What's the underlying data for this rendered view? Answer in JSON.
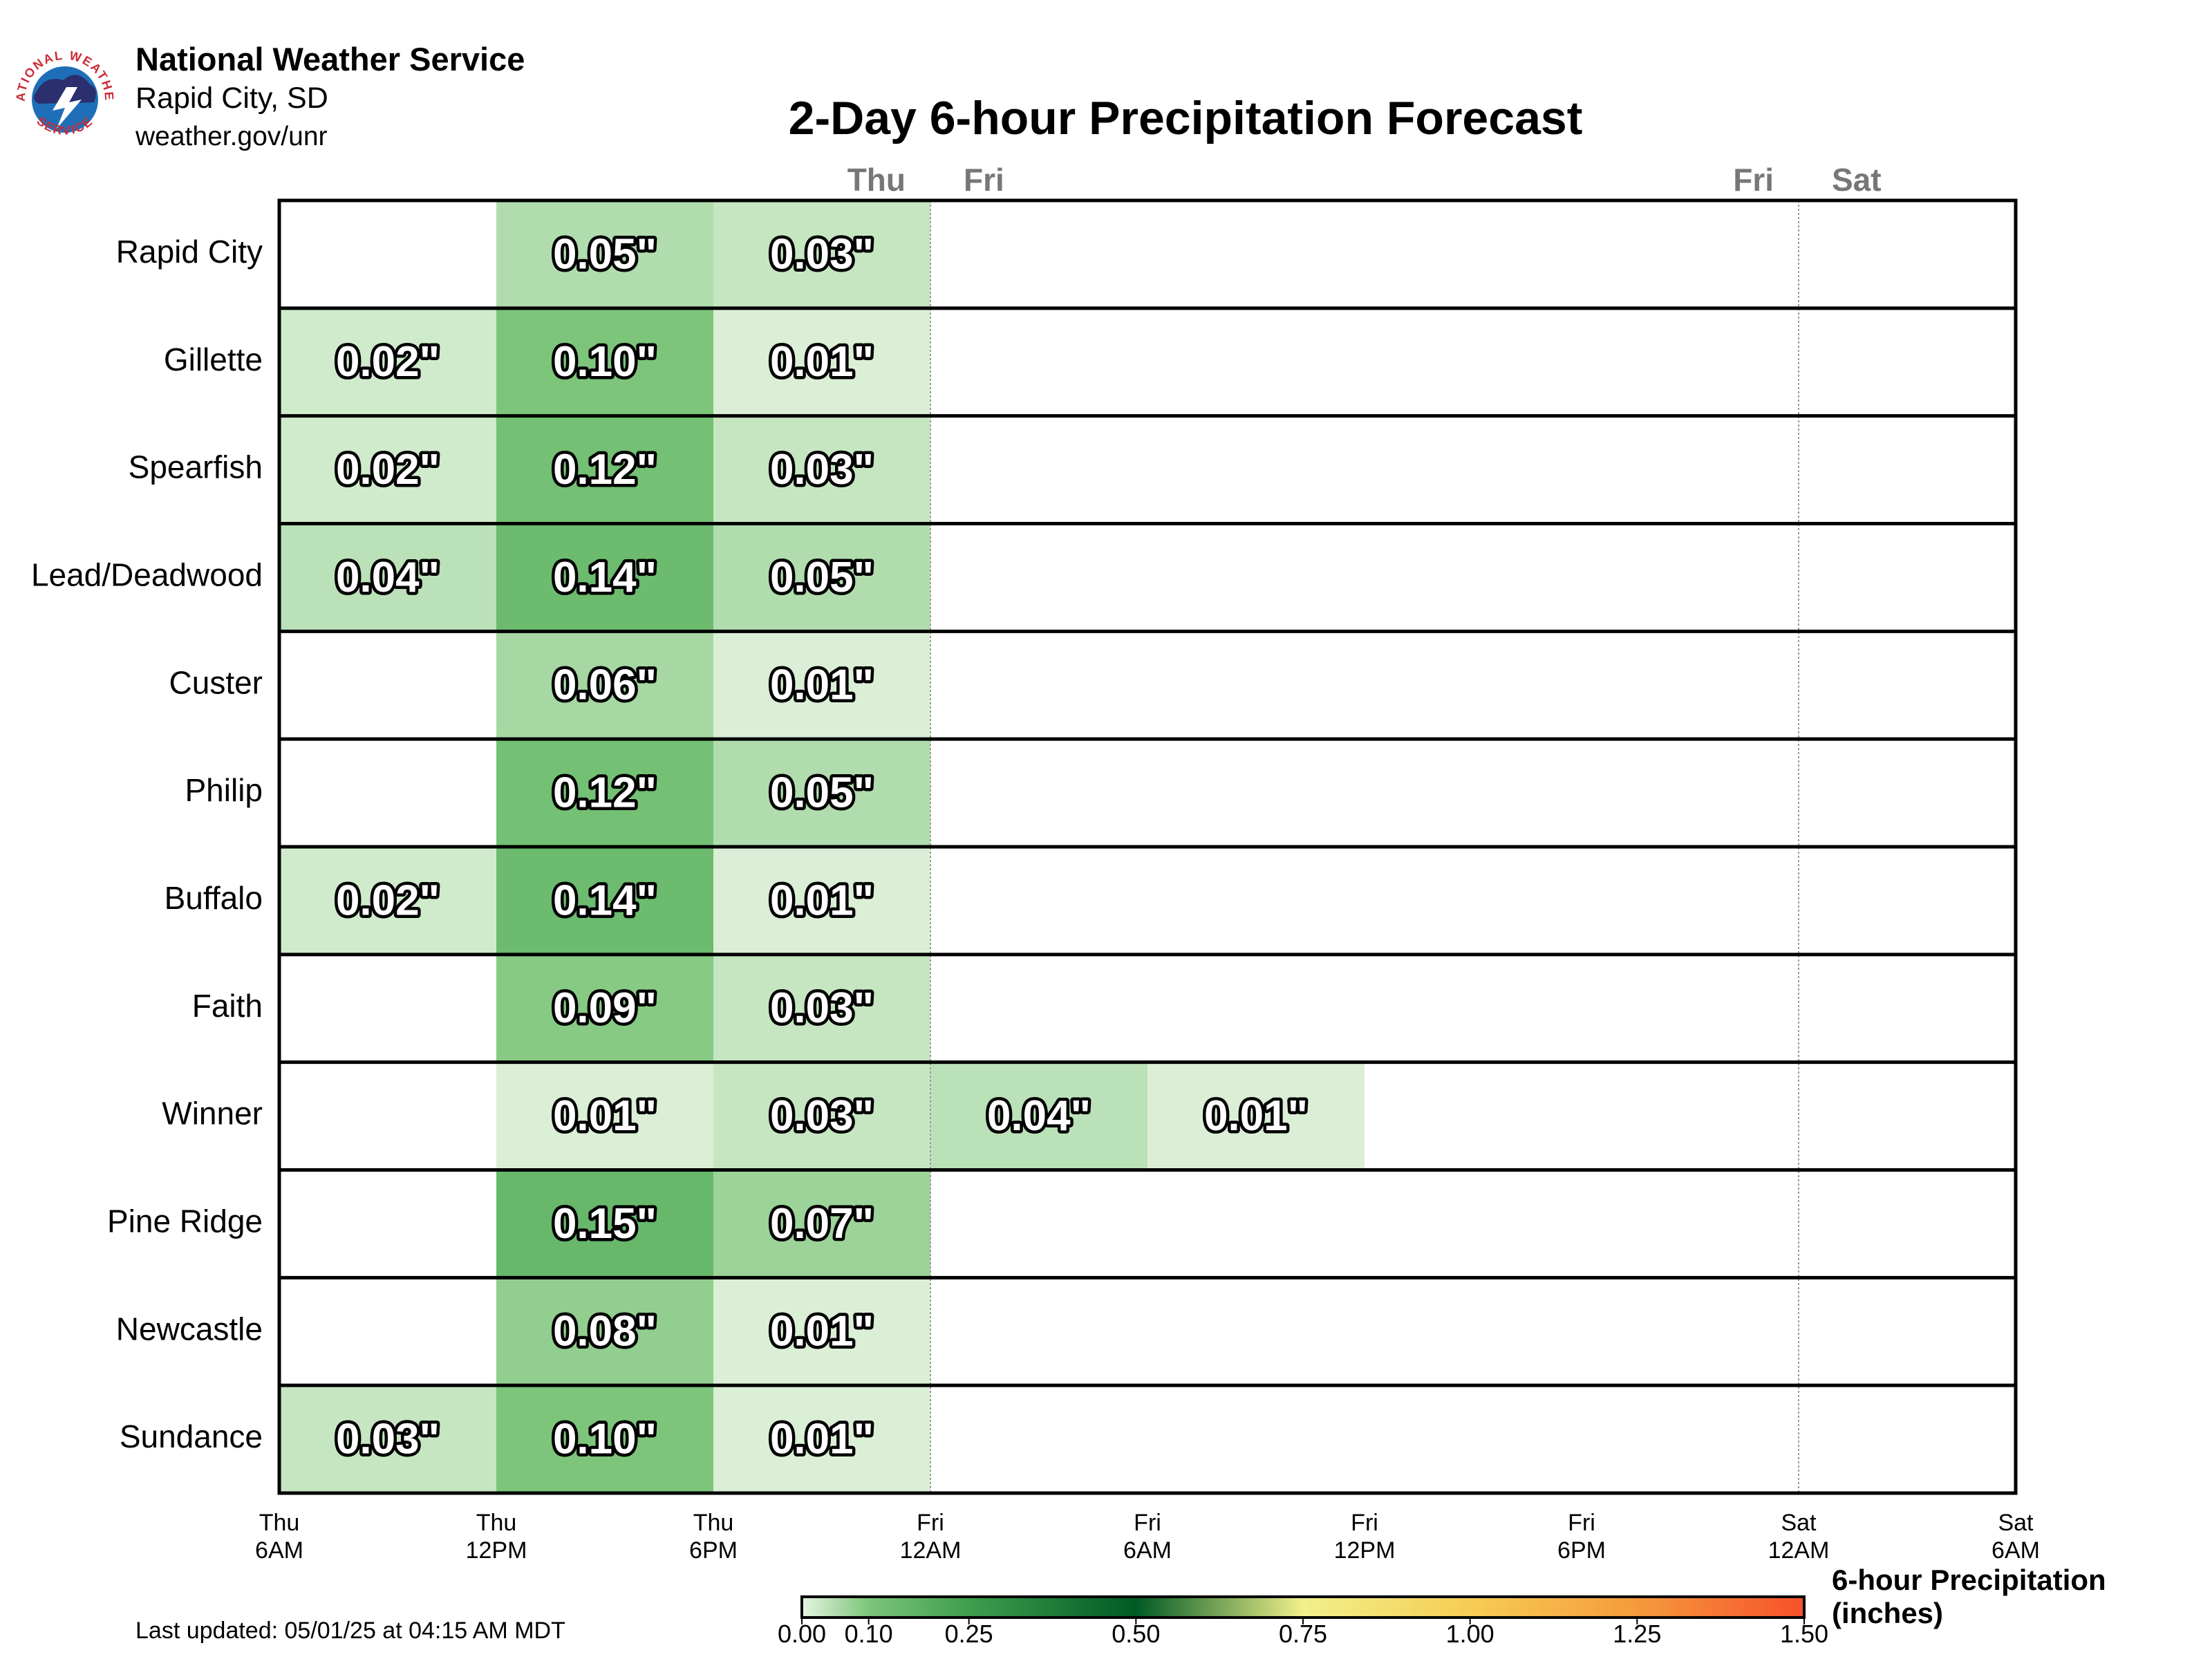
{
  "header": {
    "org_name": "National Weather Service",
    "org_city": "Rapid City, SD",
    "org_url": "weather.gov/unr",
    "logo_top_text": "NATIONAL WEATHER",
    "logo_bottom_text": "SERVICE"
  },
  "footer": {
    "updated": "Last updated: 05/01/25 at 04:15 AM MDT"
  },
  "legend": {
    "title_line1": "6-hour Precipitation",
    "title_line2": "(inches)",
    "ticks": [
      "0.00",
      "0.10",
      "0.25",
      "0.50",
      "0.75",
      "1.00",
      "1.25",
      "1.50"
    ],
    "tick_values": [
      0.0,
      0.1,
      0.25,
      0.5,
      0.75,
      1.0,
      1.25,
      1.5
    ],
    "stops": [
      {
        "v": 0.0,
        "c": "#e5f4e1"
      },
      {
        "v": 0.1,
        "c": "#7dc57a"
      },
      {
        "v": 0.25,
        "c": "#3d9e4e"
      },
      {
        "v": 0.5,
        "c": "#005a24"
      },
      {
        "v": 0.75,
        "c": "#f1f08a"
      },
      {
        "v": 1.0,
        "c": "#f6cd55"
      },
      {
        "v": 1.25,
        "c": "#f59a3c"
      },
      {
        "v": 1.5,
        "c": "#f6502b"
      }
    ]
  },
  "chart_data": {
    "type": "heatmap",
    "title": "2-Day 6-hour Precipitation Forecast",
    "units": "inches",
    "x_tick_labels": [
      [
        "Thu",
        "6AM"
      ],
      [
        "Thu",
        "12PM"
      ],
      [
        "Thu",
        "6PM"
      ],
      [
        "Fri",
        "12AM"
      ],
      [
        "Fri",
        "6AM"
      ],
      [
        "Fri",
        "12PM"
      ],
      [
        "Fri",
        "6PM"
      ],
      [
        "Sat",
        "12AM"
      ],
      [
        "Sat",
        "6AM"
      ]
    ],
    "day_markers": [
      {
        "label": "Thu",
        "side": "left",
        "at_tick": 3
      },
      {
        "label": "Fri",
        "side": "right",
        "at_tick": 3
      },
      {
        "label": "Fri",
        "side": "left",
        "at_tick": 7
      },
      {
        "label": "Sat",
        "side": "right",
        "at_tick": 7
      }
    ],
    "day_boundaries": [
      3,
      7
    ],
    "rows": [
      {
        "location": "Rapid City",
        "values": [
          null,
          0.05,
          0.03,
          null,
          null,
          null,
          null,
          null
        ]
      },
      {
        "location": "Gillette",
        "values": [
          0.02,
          0.1,
          0.01,
          null,
          null,
          null,
          null,
          null
        ]
      },
      {
        "location": "Spearfish",
        "values": [
          0.02,
          0.12,
          0.03,
          null,
          null,
          null,
          null,
          null
        ]
      },
      {
        "location": "Lead/Deadwood",
        "values": [
          0.04,
          0.14,
          0.05,
          null,
          null,
          null,
          null,
          null
        ]
      },
      {
        "location": "Custer",
        "values": [
          null,
          0.06,
          0.01,
          null,
          null,
          null,
          null,
          null
        ]
      },
      {
        "location": "Philip",
        "values": [
          null,
          0.12,
          0.05,
          null,
          null,
          null,
          null,
          null
        ]
      },
      {
        "location": "Buffalo",
        "values": [
          0.02,
          0.14,
          0.01,
          null,
          null,
          null,
          null,
          null
        ]
      },
      {
        "location": "Faith",
        "values": [
          null,
          0.09,
          0.03,
          null,
          null,
          null,
          null,
          null
        ]
      },
      {
        "location": "Winner",
        "values": [
          null,
          0.01,
          0.03,
          0.04,
          0.01,
          null,
          null,
          null
        ]
      },
      {
        "location": "Pine Ridge",
        "values": [
          null,
          0.15,
          0.07,
          null,
          null,
          null,
          null,
          null
        ]
      },
      {
        "location": "Newcastle",
        "values": [
          null,
          0.08,
          0.01,
          null,
          null,
          null,
          null,
          null
        ]
      },
      {
        "location": "Sundance",
        "values": [
          0.03,
          0.1,
          0.01,
          null,
          null,
          null,
          null,
          null
        ]
      }
    ]
  }
}
